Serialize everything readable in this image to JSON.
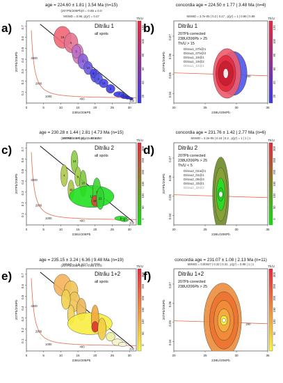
{
  "chart_data": [
    {
      "letter": "a)",
      "type": "scatter",
      "title": "age = 224.60 ± 1.81 | 3.54 Ma (n=15)",
      "subtitle": "(207Pb/206Pb)0 = 0.85 ± 0.0",
      "mswd_line": "MSWD = 0.96, p(χ²) = 0.47",
      "legend_lines": [
        "Ditrău 1",
        "all spots"
      ],
      "xlabel": "238U/206Pb",
      "ylabel": "207Pb/206Pb",
      "xlim": [
        0,
        32
      ],
      "ylim": [
        0,
        0.75
      ],
      "x_ticks": [
        0,
        5,
        10,
        15,
        20,
        25,
        30
      ],
      "y_ticks": [
        0.1,
        0.2,
        0.3,
        0.4,
        0.5,
        0.6,
        0.7
      ],
      "concordia_labels": [
        {
          "text": "4000",
          "x": 1.3,
          "y": 0.4
        },
        {
          "text": "2000",
          "x": 2.6,
          "y": 0.17
        },
        {
          "text": "1000",
          "x": 5.5,
          "y": 0.05
        },
        {
          "text": "400",
          "x": 15.5,
          "y": 0.03
        },
        {
          "text": "200",
          "x": 30,
          "y": 0.01
        }
      ],
      "isochron": {
        "x1": 4,
        "y1": 0.72,
        "x2": 31,
        "y2": 0.03
      },
      "colorbar": {
        "label": "Th/U",
        "low": "#3a3ae8",
        "high": "#e8283c",
        "ticks": [
          20,
          40,
          60,
          80,
          100,
          120
        ]
      },
      "points": [
        {
          "x": 10.5,
          "y": 0.6,
          "rx": 2.5,
          "ry": 0.1,
          "color": "#ef6674",
          "label": "15"
        },
        {
          "x": 13,
          "y": 0.55,
          "rx": 2,
          "ry": 0.09,
          "color": "#e57490",
          "label": "5"
        },
        {
          "x": 15,
          "y": 0.45,
          "rx": 1.6,
          "ry": 0.09,
          "color": "#d27ab5",
          "label": "13"
        },
        {
          "x": 14.5,
          "y": 0.47,
          "rx": 1.3,
          "ry": 0.06,
          "color": "#bf6fc8",
          "label": "3"
        },
        {
          "x": 16.5,
          "y": 0.38,
          "rx": 1.5,
          "ry": 0.07,
          "color": "#8a5fd8",
          "label": "6"
        },
        {
          "x": 18,
          "y": 0.32,
          "rx": 1.3,
          "ry": 0.06,
          "color": "#6e5ae0",
          "label": "10"
        },
        {
          "x": 20,
          "y": 0.25,
          "rx": 1.3,
          "ry": 0.06,
          "color": "#5a52e3",
          "label": "8"
        },
        {
          "x": 19.5,
          "y": 0.27,
          "rx": 1,
          "ry": 0.04,
          "color": "#4a47e8",
          "label": "9"
        },
        {
          "x": 21,
          "y": 0.22,
          "rx": 1.2,
          "ry": 0.05,
          "color": "#5656e6",
          "label": "4"
        },
        {
          "x": 22.5,
          "y": 0.18,
          "rx": 1.3,
          "ry": 0.04,
          "color": "#4646e8",
          "label": "12"
        },
        {
          "x": 24.5,
          "y": 0.13,
          "rx": 1.3,
          "ry": 0.04,
          "color": "#3e3ee8",
          "label": "2"
        },
        {
          "x": 27,
          "y": 0.08,
          "rx": 1.6,
          "ry": 0.025,
          "color": "#3838e8",
          "label": "7"
        },
        {
          "x": 28.5,
          "y": 0.06,
          "rx": 1.1,
          "ry": 0.02,
          "color": "#3434e8",
          "label": "14"
        },
        {
          "x": 29.5,
          "y": 0.05,
          "rx": 0.8,
          "ry": 0.015,
          "color": "#3232e8",
          "label": "11"
        },
        {
          "x": 30.5,
          "y": 0.04,
          "rx": 0.6,
          "ry": 0.012,
          "color": "#3030e8",
          "label": "1"
        }
      ]
    },
    {
      "letter": "b)",
      "type": "scatter",
      "title": "concordia age = 224.50 ± 1.77 | 3.48 Ma (n=4)",
      "subtitle": "",
      "mswd_line": "MSWD = 3.7e-05 | 0.2 | 0.17 , p(χ²) = 1 | 0.98 | 0.99",
      "legend_lines": [
        "Ditrău 1",
        "207Pb corrected",
        "238U/206Pb > 25",
        "Th/U > 15"
      ],
      "spot_lines": [
        "Ditrau1_07b@1",
        "Ditrau1_07b@2",
        "Ditrau1_19@1",
        "Ditrau1_19@2",
        "Ditrau1_12@1"
      ],
      "xlabel": "238U/206Pb",
      "ylabel": "207Pb/206Pb",
      "xlim": [
        20,
        35
      ],
      "ylim": [
        0.035,
        0.078
      ],
      "x_ticks": [
        20,
        25,
        30,
        35
      ],
      "y_ticks": [
        0.04,
        0.05,
        0.06,
        0.07
      ],
      "concordia_labels": [
        {
          "text": "200",
          "x": 31.5,
          "y": 0.0485
        }
      ],
      "colorbar": {
        "label": "Th/U",
        "low": "#3a3ae8",
        "high": "#e8283c",
        "ticks": [
          20,
          40,
          60,
          80,
          100,
          120
        ]
      },
      "points": [
        {
          "x": 29.5,
          "y": 0.0505,
          "rx": 2.2,
          "ry": 0.0115,
          "color": "#5055e6",
          "label": ""
        },
        {
          "x": 28.5,
          "y": 0.0505,
          "rx": 2.2,
          "ry": 0.013,
          "color": "#ee5a6a",
          "label": ""
        },
        {
          "x": 28.3,
          "y": 0.0505,
          "rx": 1.6,
          "ry": 0.0095,
          "color": "#e8283c",
          "label": ""
        },
        {
          "x": 28.3,
          "y": 0.0505,
          "rx": 1.2,
          "ry": 0.0065,
          "color": "#c81e30",
          "label": ""
        },
        {
          "x": 28.3,
          "y": 0.0505,
          "rx": 0.4,
          "ry": 0.0025,
          "color": "#ffffff",
          "label": ""
        }
      ]
    },
    {
      "letter": "c)",
      "type": "scatter",
      "title": "age = 230.28 ± 1.44 | 2.81 | 4.73 Ma (n=15)",
      "subtitle": "(207Pb/206Pb)0 = 0.85 ± 0.0",
      "mswd_line": "MSWD = 2.4, p(χ²) = 0.0026",
      "legend_lines": [
        "Ditrău 2",
        "all spots"
      ],
      "xlabel": "238U/206Pb",
      "ylabel": "207Pb/206Pb",
      "xlim": [
        0,
        32
      ],
      "ylim": [
        0,
        0.75
      ],
      "x_ticks": [
        0,
        5,
        10,
        15,
        20,
        25,
        30
      ],
      "y_ticks": [
        0.1,
        0.2,
        0.3,
        0.4,
        0.5,
        0.6,
        0.7
      ],
      "concordia_labels": [
        {
          "text": "4000",
          "x": 1.3,
          "y": 0.4
        },
        {
          "text": "2000",
          "x": 2.6,
          "y": 0.17
        },
        {
          "text": "1000",
          "x": 5.5,
          "y": 0.05
        },
        {
          "text": "400",
          "x": 15.5,
          "y": 0.03
        },
        {
          "text": "200",
          "x": 30,
          "y": 0.01
        }
      ],
      "isochron": {
        "x1": 4,
        "y1": 0.72,
        "x2": 31,
        "y2": 0.03
      },
      "colorbar": {
        "label": "Th/U",
        "low": "#10e010",
        "high": "#e8283c",
        "ticks": [
          0,
          50,
          100,
          150,
          200,
          250,
          300
        ]
      },
      "points": [
        {
          "x": 14,
          "y": 0.58,
          "rx": 1,
          "ry": 0.1,
          "color": "#8ecb45",
          "label": "14"
        },
        {
          "x": 11,
          "y": 0.45,
          "rx": 1,
          "ry": 0.1,
          "color": "#b0c94a",
          "label": "4"
        },
        {
          "x": 15,
          "y": 0.44,
          "rx": 0.9,
          "ry": 0.09,
          "color": "#9bcc45",
          "label": "9"
        },
        {
          "x": 16.5,
          "y": 0.38,
          "rx": 1,
          "ry": 0.12,
          "color": "#7ec940",
          "label": "16"
        },
        {
          "x": 13,
          "y": 0.32,
          "rx": 0.9,
          "ry": 0.09,
          "color": "#a8c448",
          "label": "10"
        },
        {
          "x": 19,
          "y": 0.26,
          "rx": 6.5,
          "ry": 0.1,
          "color": "#22e022",
          "label": "12"
        },
        {
          "x": 20.5,
          "y": 0.3,
          "rx": 1.2,
          "ry": 0.13,
          "color": "#3fd535",
          "label": "3"
        },
        {
          "x": 20,
          "y": 0.22,
          "rx": 1.1,
          "ry": 0.05,
          "color": "#d04838",
          "label": "20"
        },
        {
          "x": 21.5,
          "y": 0.24,
          "rx": 1.1,
          "ry": 0.1,
          "color": "#30d530",
          "label": "21"
        },
        {
          "x": 27.5,
          "y": 0.06,
          "rx": 1.8,
          "ry": 0.02,
          "color": "#22e022",
          "label": "5"
        },
        {
          "x": 28.5,
          "y": 0.045,
          "rx": 1.2,
          "ry": 0.015,
          "color": "#2ad42a",
          "label": "8"
        }
      ]
    },
    {
      "letter": "d)",
      "type": "scatter",
      "title": "concordia age = 231.76 ± 1.42 | 2.77 Ma (n=6)",
      "subtitle": "",
      "mswd_line": "MSWD = 3.2e-05 | 0.15 | 0.2 , p(χ²) = 1 | 1 | 1",
      "legend_lines": [
        "Ditrău 2",
        "207Pb corrected",
        "238U/206Pb > 25",
        "Th/U < 5"
      ],
      "spot_lines": [
        "Ditrau2_02a@1",
        "Ditrau2_04@1",
        "Ditrau2_06@3",
        "Ditrau2_33@1",
        "Ditrau2_33@2"
      ],
      "xlabel": "238U/206Pb",
      "ylabel": "207Pb/206Pb",
      "xlim": [
        20,
        35
      ],
      "ylim": [
        0.035,
        0.078
      ],
      "x_ticks": [
        20,
        25,
        30,
        35
      ],
      "y_ticks": [
        0.04,
        0.05,
        0.06,
        0.07
      ],
      "concordia_labels": [],
      "colorbar": {
        "label": "Th/U",
        "low": "#10e010",
        "high": "#e8283c",
        "ticks": [
          0,
          50,
          100,
          150,
          200,
          250,
          300
        ]
      },
      "points": [
        {
          "x": 27.5,
          "y": 0.051,
          "rx": 1.3,
          "ry": 0.0195,
          "color": "#6c8a28",
          "label": ""
        },
        {
          "x": 27.5,
          "y": 0.051,
          "rx": 1,
          "ry": 0.014,
          "color": "#8aa235",
          "label": ""
        },
        {
          "x": 27.5,
          "y": 0.051,
          "rx": 0.7,
          "ry": 0.0085,
          "color": "#22e022",
          "label": ""
        },
        {
          "x": 27.5,
          "y": 0.051,
          "rx": 0.45,
          "ry": 0.0035,
          "color": "#1fcf1f",
          "label": ""
        },
        {
          "x": 27.5,
          "y": 0.051,
          "rx": 0.3,
          "ry": 0.0015,
          "color": "#ffffff",
          "label": ""
        }
      ]
    },
    {
      "letter": "e)",
      "type": "scatter",
      "title": "age = 235.15 ± 3.24 | 6.36 | 9.48 Ma (n=19)",
      "subtitle": "(207Pb/206Pb)0 = 0.85 ± 0.0",
      "mswd_line": "MSWD = 1.9, p(χ²) = 0.0096",
      "legend_lines": [
        "Ditrău 1+2",
        "all spots"
      ],
      "xlabel": "238U/206Pb",
      "ylabel": "207Pb/206Pb",
      "xlim": [
        0,
        32
      ],
      "ylim": [
        0,
        0.75
      ],
      "x_ticks": [
        0,
        5,
        10,
        15,
        20,
        25,
        30
      ],
      "y_ticks": [
        0.1,
        0.2,
        0.3,
        0.4,
        0.5,
        0.6,
        0.7
      ],
      "concordia_labels": [
        {
          "text": "4000",
          "x": 1.3,
          "y": 0.4
        },
        {
          "text": "2000",
          "x": 2.6,
          "y": 0.17
        },
        {
          "text": "1000",
          "x": 5.5,
          "y": 0.05
        },
        {
          "text": "400",
          "x": 15.5,
          "y": 0.03
        },
        {
          "text": "200",
          "x": 30,
          "y": 0.01
        }
      ],
      "isochron": {
        "x1": 4,
        "y1": 0.72,
        "x2": 31,
        "y2": 0.03
      },
      "colorbar": {
        "label": "Th/U",
        "low": "#f8f840",
        "high": "#e8283c",
        "ticks": [
          0,
          50,
          100,
          150,
          200,
          250,
          300
        ]
      },
      "points": [
        {
          "x": 10.5,
          "y": 0.6,
          "rx": 2.5,
          "ry": 0.1,
          "color": "#f5b45a",
          "label": ""
        },
        {
          "x": 13,
          "y": 0.55,
          "rx": 2,
          "ry": 0.09,
          "color": "#f2c45a",
          "label": ""
        },
        {
          "x": 14,
          "y": 0.45,
          "rx": 1.6,
          "ry": 0.09,
          "color": "#f0c458",
          "label": ""
        },
        {
          "x": 11.5,
          "y": 0.47,
          "rx": 1.3,
          "ry": 0.09,
          "color": "#f2d050",
          "label": ""
        },
        {
          "x": 16,
          "y": 0.38,
          "rx": 1.4,
          "ry": 0.1,
          "color": "#ecb858",
          "label": ""
        },
        {
          "x": 13,
          "y": 0.33,
          "rx": 1,
          "ry": 0.09,
          "color": "#f5d25a",
          "label": ""
        },
        {
          "x": 18.5,
          "y": 0.25,
          "rx": 6.5,
          "ry": 0.1,
          "color": "#f8ec40",
          "label": ""
        },
        {
          "x": 20,
          "y": 0.3,
          "rx": 1.1,
          "ry": 0.12,
          "color": "#f0a840",
          "label": ""
        },
        {
          "x": 20,
          "y": 0.22,
          "rx": 1,
          "ry": 0.05,
          "color": "#d83a2a",
          "label": ""
        },
        {
          "x": 22,
          "y": 0.2,
          "rx": 1.2,
          "ry": 0.1,
          "color": "#f2cc44",
          "label": ""
        },
        {
          "x": 24.5,
          "y": 0.13,
          "rx": 1.3,
          "ry": 0.04,
          "color": "#f0f0a0",
          "label": ""
        },
        {
          "x": 26.5,
          "y": 0.08,
          "rx": 1.6,
          "ry": 0.03,
          "color": "#f3f3c8",
          "label": ""
        },
        {
          "x": 28,
          "y": 0.06,
          "rx": 1.2,
          "ry": 0.02,
          "color": "#f5f5d0",
          "label": ""
        }
      ]
    },
    {
      "letter": "f)",
      "type": "scatter",
      "title": "concordia age = 231.07 ± 1.08 | 2.13 Ma (n=11)",
      "subtitle": "",
      "mswd_line": "MSWD = 0.00047 | 0.32 | 0.31 , p(χ²) = 0.98 | 1 | 1",
      "legend_lines": [
        "Ditrău 1+2",
        "207Pb corrected",
        "238U/206Pb > 25"
      ],
      "xlabel": "238U/206Pb",
      "ylabel": "207Pb/206Pb",
      "xlim": [
        20,
        35
      ],
      "ylim": [
        0.035,
        0.078
      ],
      "x_ticks": [
        20,
        25,
        30,
        35
      ],
      "y_ticks": [
        0.04,
        0.05,
        0.06,
        0.07
      ],
      "concordia_labels": [
        {
          "text": "200",
          "x": 31.5,
          "y": 0.0485
        }
      ],
      "colorbar": {
        "label": "Th/U",
        "low": "#f8f840",
        "high": "#e8283c",
        "ticks": [
          0,
          50,
          100,
          150,
          200,
          250,
          300
        ]
      },
      "points": [
        {
          "x": 27.8,
          "y": 0.051,
          "rx": 3,
          "ry": 0.0195,
          "color": "#ec8c3c",
          "label": ""
        },
        {
          "x": 28,
          "y": 0.051,
          "rx": 2.3,
          "ry": 0.015,
          "color": "#ec7230",
          "label": ""
        },
        {
          "x": 28,
          "y": 0.051,
          "rx": 1.6,
          "ry": 0.0105,
          "color": "#f08e38",
          "label": ""
        },
        {
          "x": 28,
          "y": 0.051,
          "rx": 1,
          "ry": 0.006,
          "color": "#f5b040",
          "label": ""
        },
        {
          "x": 28,
          "y": 0.051,
          "rx": 0.55,
          "ry": 0.0025,
          "color": "#f8f840",
          "label": ""
        },
        {
          "x": 28,
          "y": 0.051,
          "rx": 0.3,
          "ry": 0.001,
          "color": "#ffffff",
          "label": ""
        }
      ]
    }
  ]
}
